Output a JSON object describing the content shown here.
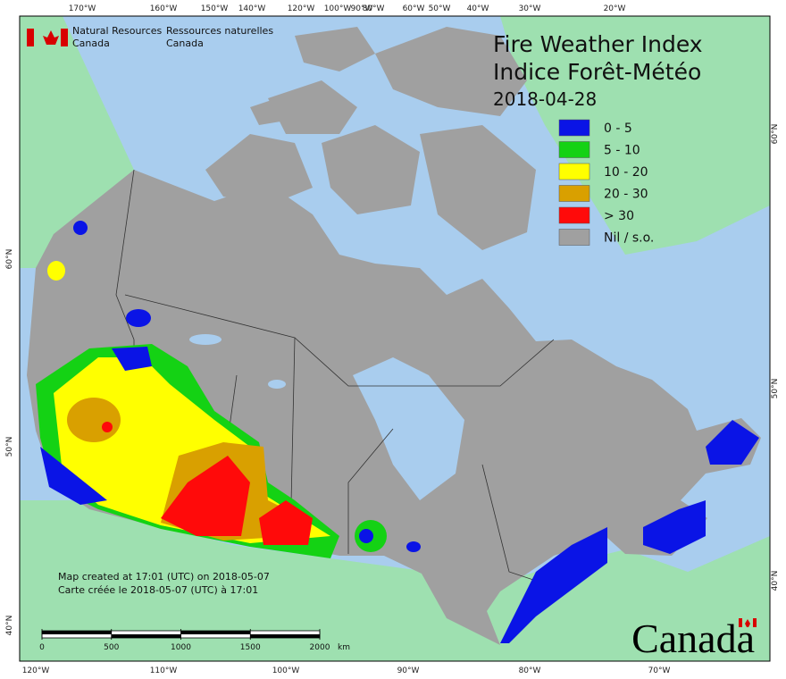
{
  "header": {
    "agency_en": [
      "Natural Resources",
      "Canada"
    ],
    "agency_fr": [
      "Ressources naturelles",
      "Canada"
    ]
  },
  "title": [
    "Fire Weather Index",
    "Indice Forêt-Météo"
  ],
  "date": "2018-04-28",
  "legend": [
    {
      "label": "0 - 5",
      "color": "#0a14e6"
    },
    {
      "label": "5 - 10",
      "color": "#14d214"
    },
    {
      "label": "10 - 20",
      "color": "#ffff00"
    },
    {
      "label": "20 - 30",
      "color": "#d9a000"
    },
    {
      "label": "> 30",
      "color": "#ff0a0a"
    },
    {
      "label": "Nil / s.o.",
      "color": "#a0a0a0"
    }
  ],
  "graticule": {
    "top": [
      "170°W",
      "160°W",
      "150°W",
      "140°W",
      "120°W",
      "100°W",
      "90°W",
      "80°W",
      "60°W",
      "50°W",
      "40°W",
      "30°W",
      "20°W"
    ],
    "bottom": [
      "120°W",
      "110°W",
      "100°W",
      "90°W",
      "80°W",
      "70°W"
    ],
    "left": [
      "60°N",
      "50°N",
      "40°N"
    ],
    "right": [
      "60°N",
      "50°N",
      "40°N"
    ]
  },
  "footer": [
    "Map created at 17:01 (UTC) on 2018-05-07",
    "Carte créée le 2018-05-07 (UTC) à 17:01"
  ],
  "scale_bar": {
    "ticks": [
      0,
      500,
      1000,
      1500,
      2000
    ],
    "unit": "km"
  },
  "wordmark": "Canada"
}
